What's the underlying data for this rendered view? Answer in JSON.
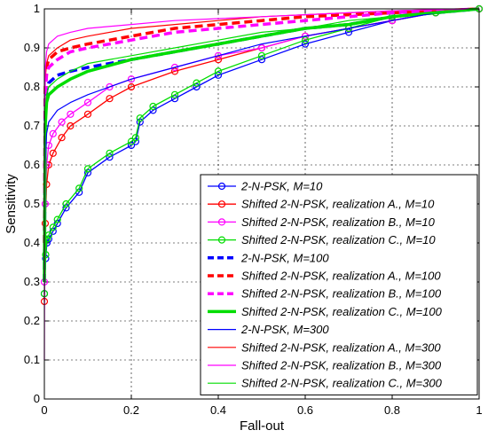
{
  "chart_data": {
    "type": "line",
    "title": "",
    "xlabel": "Fall-out",
    "ylabel": "Sensitivity",
    "xlim": [
      0,
      1
    ],
    "ylim": [
      0,
      1
    ],
    "xticks": [
      "0",
      "0.2",
      "0.4",
      "0.6",
      "0.8",
      "1"
    ],
    "yticks": [
      "0",
      "0.1",
      "0.2",
      "0.3",
      "0.4",
      "0.5",
      "0.6",
      "0.7",
      "0.8",
      "0.9",
      "1"
    ],
    "grid": true,
    "legend_position": "bottom-right",
    "series": [
      {
        "name": "2-N-PSK, M=10",
        "color": "#0000ff",
        "style": "solid-circle",
        "x": [
          0,
          0.003,
          0.006,
          0.01,
          0.02,
          0.03,
          0.05,
          0.08,
          0.1,
          0.15,
          0.2,
          0.21,
          0.22,
          0.25,
          0.3,
          0.35,
          0.4,
          0.5,
          0.6,
          0.7,
          0.8,
          0.9,
          1.0
        ],
        "y": [
          0.27,
          0.36,
          0.4,
          0.41,
          0.43,
          0.45,
          0.49,
          0.53,
          0.58,
          0.62,
          0.65,
          0.66,
          0.71,
          0.74,
          0.77,
          0.8,
          0.83,
          0.87,
          0.91,
          0.94,
          0.97,
          0.99,
          1.0
        ]
      },
      {
        "name": "Shifted 2-N-PSK, realization A., M=10",
        "color": "#ff0000",
        "style": "solid-circle",
        "x": [
          0,
          0.002,
          0.005,
          0.01,
          0.02,
          0.04,
          0.06,
          0.1,
          0.15,
          0.2,
          0.3,
          0.4,
          0.5,
          0.6,
          0.7,
          0.8,
          0.9,
          1.0
        ],
        "y": [
          0.25,
          0.45,
          0.55,
          0.6,
          0.63,
          0.67,
          0.7,
          0.73,
          0.77,
          0.8,
          0.84,
          0.87,
          0.9,
          0.93,
          0.95,
          0.97,
          0.99,
          1.0
        ]
      },
      {
        "name": "Shifted 2-N-PSK, realization B., M=10",
        "color": "#ff00ff",
        "style": "solid-circle",
        "x": [
          0,
          0.002,
          0.005,
          0.01,
          0.02,
          0.04,
          0.06,
          0.1,
          0.15,
          0.2,
          0.3,
          0.4,
          0.5,
          0.6,
          0.7,
          0.8,
          0.9,
          1.0
        ],
        "y": [
          0.3,
          0.5,
          0.6,
          0.65,
          0.68,
          0.71,
          0.73,
          0.76,
          0.8,
          0.82,
          0.85,
          0.88,
          0.9,
          0.93,
          0.95,
          0.97,
          0.99,
          1.0
        ]
      },
      {
        "name": "Shifted 2-N-PSK, realization C., M=10",
        "color": "#00dd00",
        "style": "solid-circle",
        "x": [
          0,
          0.003,
          0.006,
          0.01,
          0.02,
          0.03,
          0.05,
          0.08,
          0.1,
          0.15,
          0.2,
          0.21,
          0.22,
          0.25,
          0.3,
          0.35,
          0.4,
          0.5,
          0.6,
          0.7,
          0.8,
          0.9,
          1.0
        ],
        "y": [
          0.27,
          0.37,
          0.41,
          0.42,
          0.44,
          0.46,
          0.5,
          0.54,
          0.59,
          0.63,
          0.66,
          0.67,
          0.72,
          0.75,
          0.78,
          0.81,
          0.84,
          0.88,
          0.92,
          0.95,
          0.98,
          0.99,
          1.0
        ]
      },
      {
        "name": "2-N-PSK, M=100",
        "color": "#0000ff",
        "style": "dashed-thick",
        "x": [
          0,
          0.002,
          0.005,
          0.01,
          0.03,
          0.06,
          0.1,
          0.2,
          0.3,
          0.4,
          0.5,
          0.6,
          0.7,
          0.8,
          0.9,
          1.0
        ],
        "y": [
          0.3,
          0.72,
          0.79,
          0.81,
          0.83,
          0.84,
          0.85,
          0.87,
          0.89,
          0.91,
          0.93,
          0.95,
          0.96,
          0.98,
          0.99,
          1.0
        ]
      },
      {
        "name": "Shifted 2-N-PSK, realization A., M=100",
        "color": "#ff0000",
        "style": "dashed-thick",
        "x": [
          0,
          0.002,
          0.005,
          0.01,
          0.03,
          0.06,
          0.1,
          0.2,
          0.3,
          0.4,
          0.5,
          0.6,
          0.7,
          0.8,
          0.9,
          1.0
        ],
        "y": [
          0.4,
          0.8,
          0.85,
          0.87,
          0.89,
          0.9,
          0.91,
          0.93,
          0.95,
          0.96,
          0.97,
          0.98,
          0.985,
          0.99,
          0.995,
          1.0
        ]
      },
      {
        "name": "Shifted 2-N-PSK, realization B., M=100",
        "color": "#ff00ff",
        "style": "dashed-thick",
        "x": [
          0,
          0.002,
          0.005,
          0.01,
          0.03,
          0.06,
          0.1,
          0.2,
          0.3,
          0.4,
          0.5,
          0.6,
          0.7,
          0.8,
          0.9,
          1.0
        ],
        "y": [
          0.4,
          0.78,
          0.83,
          0.85,
          0.87,
          0.89,
          0.9,
          0.92,
          0.94,
          0.95,
          0.96,
          0.97,
          0.98,
          0.99,
          0.995,
          1.0
        ]
      },
      {
        "name": "Shifted 2-N-PSK, realization C., M=100",
        "color": "#00dd00",
        "style": "solid-thick",
        "x": [
          0,
          0.002,
          0.005,
          0.01,
          0.03,
          0.06,
          0.1,
          0.2,
          0.3,
          0.4,
          0.5,
          0.6,
          0.7,
          0.8,
          0.9,
          1.0
        ],
        "y": [
          0.3,
          0.7,
          0.76,
          0.78,
          0.8,
          0.82,
          0.84,
          0.87,
          0.89,
          0.91,
          0.93,
          0.95,
          0.96,
          0.98,
          0.99,
          1.0
        ]
      },
      {
        "name": "2-N-PSK, M=300",
        "color": "#0000ff",
        "style": "solid-thin",
        "x": [
          0,
          0.002,
          0.005,
          0.01,
          0.03,
          0.06,
          0.1,
          0.2,
          0.3,
          0.4,
          0.5,
          0.6,
          0.7,
          0.8,
          0.9,
          1.0
        ],
        "y": [
          0.3,
          0.6,
          0.68,
          0.71,
          0.74,
          0.76,
          0.78,
          0.82,
          0.85,
          0.88,
          0.91,
          0.93,
          0.95,
          0.97,
          0.99,
          1.0
        ]
      },
      {
        "name": "Shifted 2-N-PSK, realization A., M=300",
        "color": "#ff0000",
        "style": "solid-thin",
        "x": [
          0,
          0.002,
          0.005,
          0.01,
          0.03,
          0.06,
          0.1,
          0.2,
          0.3,
          0.4,
          0.5,
          0.6,
          0.7,
          0.8,
          0.9,
          1.0
        ],
        "y": [
          0.4,
          0.82,
          0.86,
          0.88,
          0.9,
          0.92,
          0.93,
          0.95,
          0.96,
          0.97,
          0.98,
          0.985,
          0.99,
          0.995,
          0.998,
          1.0
        ]
      },
      {
        "name": "Shifted 2-N-PSK, realization B., M=300",
        "color": "#ff00ff",
        "style": "solid-thin",
        "x": [
          0,
          0.002,
          0.005,
          0.01,
          0.03,
          0.06,
          0.1,
          0.2,
          0.3,
          0.4,
          0.5,
          0.6,
          0.7,
          0.8,
          0.9,
          1.0
        ],
        "y": [
          0.1,
          0.85,
          0.89,
          0.91,
          0.93,
          0.94,
          0.95,
          0.96,
          0.97,
          0.975,
          0.98,
          0.985,
          0.99,
          0.995,
          0.998,
          1.0
        ]
      },
      {
        "name": "Shifted 2-N-PSK, realization C., M=300",
        "color": "#00dd00",
        "style": "solid-thin",
        "x": [
          0,
          0.002,
          0.005,
          0.01,
          0.03,
          0.06,
          0.1,
          0.2,
          0.3,
          0.4,
          0.5,
          0.6,
          0.7,
          0.8,
          0.9,
          1.0
        ],
        "y": [
          0.3,
          0.74,
          0.78,
          0.8,
          0.82,
          0.84,
          0.86,
          0.88,
          0.9,
          0.92,
          0.94,
          0.95,
          0.97,
          0.98,
          0.99,
          1.0
        ]
      }
    ]
  }
}
